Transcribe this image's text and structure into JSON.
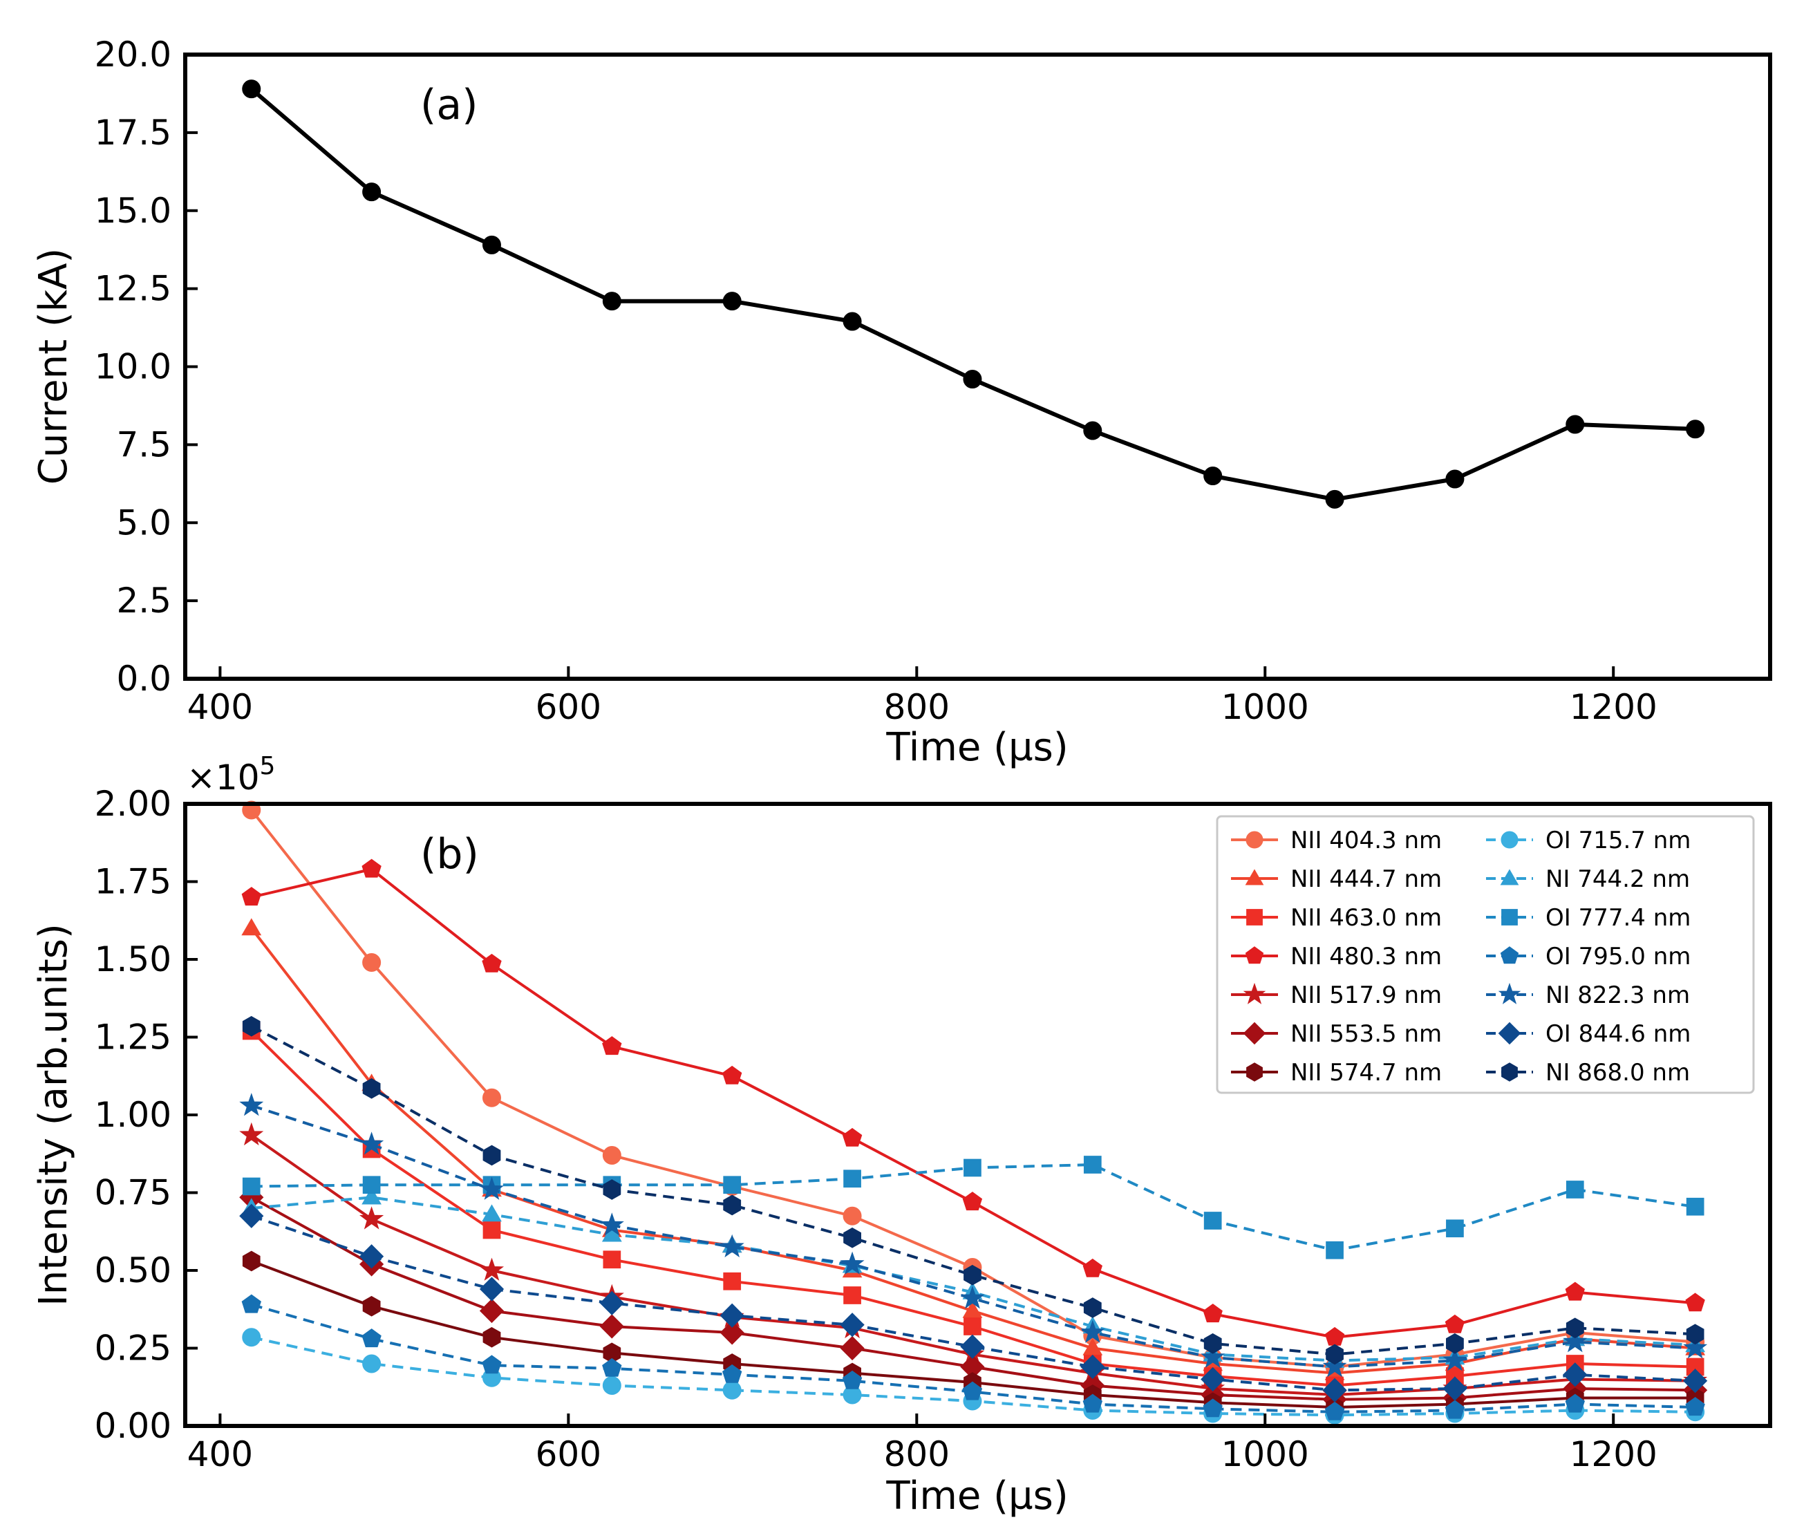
{
  "chart_data": [
    {
      "panel": "a",
      "type": "line",
      "panel_label": "(a)",
      "xlabel": "Time (µs)",
      "ylabel": "Current (kA)",
      "xlim": [
        380,
        1290
      ],
      "ylim": [
        0,
        20
      ],
      "xticks": [
        400,
        600,
        800,
        1000,
        1200
      ],
      "xtick_labels": [
        "400",
        "600",
        "800",
        "1000",
        "1200"
      ],
      "yticks": [
        0,
        2.5,
        5,
        7.5,
        10,
        12.5,
        15,
        17.5,
        20
      ],
      "ytick_labels": [
        "0.0",
        "2.5",
        "5.0",
        "7.5",
        "10.0",
        "12.5",
        "15.0",
        "17.5",
        "20.0"
      ],
      "grid": false,
      "x": [
        418,
        487,
        556,
        625,
        694,
        763,
        832,
        901,
        970,
        1040,
        1109,
        1178,
        1247
      ],
      "series": [
        {
          "name": "Current",
          "color": "#000000",
          "marker": "circle",
          "dash": false,
          "values": [
            18.9,
            15.6,
            13.9,
            12.1,
            12.1,
            11.45,
            9.6,
            7.95,
            6.5,
            5.75,
            6.4,
            8.15,
            8.0
          ]
        }
      ]
    },
    {
      "panel": "b",
      "type": "line",
      "panel_label": "(b)",
      "xlabel": "Time (µs)",
      "ylabel": "Intensity (arb.units)",
      "y_multiplier": "×10",
      "y_multiplier_exp": "5",
      "xlim": [
        380,
        1290
      ],
      "ylim": [
        0,
        2.0
      ],
      "xticks": [
        400,
        600,
        800,
        1000,
        1200
      ],
      "xtick_labels": [
        "400",
        "600",
        "800",
        "1000",
        "1200"
      ],
      "yticks": [
        0,
        0.25,
        0.5,
        0.75,
        1.0,
        1.25,
        1.5,
        1.75,
        2.0
      ],
      "ytick_labels": [
        "0.00",
        "0.25",
        "0.50",
        "0.75",
        "1.00",
        "1.25",
        "1.50",
        "1.75",
        "2.00"
      ],
      "grid": false,
      "legend_position": "top-right",
      "x": [
        418,
        487,
        556,
        625,
        694,
        763,
        832,
        901,
        970,
        1040,
        1109,
        1178,
        1247
      ],
      "series": [
        {
          "name": "NII 404.3 nm",
          "color": "#f4694b",
          "marker": "circle",
          "dash": false,
          "values": [
            1.98,
            1.49,
            1.055,
            0.87,
            0.77,
            0.675,
            0.51,
            0.29,
            0.22,
            0.19,
            0.23,
            0.3,
            0.27
          ]
        },
        {
          "name": "NII 444.7 nm",
          "color": "#f0452e",
          "marker": "triangle",
          "dash": false,
          "values": [
            1.6,
            1.1,
            0.76,
            0.63,
            0.58,
            0.5,
            0.37,
            0.25,
            0.2,
            0.17,
            0.2,
            0.28,
            0.25
          ]
        },
        {
          "name": "NII 463.0 nm",
          "color": "#ee2f26",
          "marker": "square",
          "dash": false,
          "values": [
            1.27,
            0.89,
            0.63,
            0.535,
            0.465,
            0.42,
            0.32,
            0.2,
            0.16,
            0.13,
            0.16,
            0.2,
            0.19
          ]
        },
        {
          "name": "NII 480.3 nm",
          "color": "#e11d1f",
          "marker": "pentagon",
          "dash": false,
          "values": [
            1.7,
            1.79,
            1.485,
            1.22,
            1.125,
            0.925,
            0.72,
            0.505,
            0.36,
            0.285,
            0.325,
            0.43,
            0.395
          ]
        },
        {
          "name": "NII 517.9 nm",
          "color": "#c71a1c",
          "marker": "star",
          "dash": false,
          "values": [
            0.935,
            0.665,
            0.5,
            0.415,
            0.35,
            0.315,
            0.23,
            0.17,
            0.12,
            0.1,
            0.12,
            0.15,
            0.145
          ]
        },
        {
          "name": "NII 553.5 nm",
          "color": "#a50f15",
          "marker": "diamond",
          "dash": false,
          "values": [
            0.735,
            0.52,
            0.37,
            0.32,
            0.3,
            0.25,
            0.19,
            0.13,
            0.1,
            0.085,
            0.09,
            0.12,
            0.115
          ]
        },
        {
          "name": "NII 574.7 nm",
          "color": "#7a0a0e",
          "marker": "hexagon",
          "dash": false,
          "values": [
            0.53,
            0.385,
            0.285,
            0.235,
            0.2,
            0.17,
            0.14,
            0.1,
            0.075,
            0.06,
            0.07,
            0.09,
            0.09
          ]
        },
        {
          "name": "OI 715.7 nm",
          "color": "#3bafe0",
          "marker": "circle",
          "dash": true,
          "values": [
            0.285,
            0.2,
            0.155,
            0.13,
            0.115,
            0.1,
            0.08,
            0.05,
            0.04,
            0.035,
            0.04,
            0.05,
            0.045
          ]
        },
        {
          "name": "NI 744.2 nm",
          "color": "#2f9fd4",
          "marker": "triangle",
          "dash": true,
          "values": [
            0.7,
            0.735,
            0.68,
            0.615,
            0.58,
            0.515,
            0.43,
            0.32,
            0.23,
            0.21,
            0.22,
            0.28,
            0.26
          ]
        },
        {
          "name": "OI 777.4 nm",
          "color": "#1f89c4",
          "marker": "square",
          "dash": true,
          "values": [
            0.77,
            0.775,
            0.775,
            0.775,
            0.775,
            0.795,
            0.83,
            0.84,
            0.66,
            0.565,
            0.635,
            0.76,
            0.705
          ]
        },
        {
          "name": "OI 795.0 nm",
          "color": "#1670b3",
          "marker": "pentagon",
          "dash": true,
          "values": [
            0.39,
            0.28,
            0.195,
            0.185,
            0.165,
            0.145,
            0.11,
            0.07,
            0.055,
            0.045,
            0.05,
            0.07,
            0.06
          ]
        },
        {
          "name": "NI 822.3 nm",
          "color": "#135ea3",
          "marker": "star",
          "dash": true,
          "values": [
            1.03,
            0.905,
            0.76,
            0.645,
            0.575,
            0.52,
            0.41,
            0.3,
            0.22,
            0.19,
            0.21,
            0.27,
            0.25
          ]
        },
        {
          "name": "OI 844.6 nm",
          "color": "#0e4a8e",
          "marker": "diamond",
          "dash": true,
          "values": [
            0.675,
            0.545,
            0.44,
            0.395,
            0.355,
            0.325,
            0.255,
            0.19,
            0.15,
            0.115,
            0.12,
            0.165,
            0.145
          ]
        },
        {
          "name": "NI 868.0 nm",
          "color": "#0a2f66",
          "marker": "hexagon",
          "dash": true,
          "values": [
            1.285,
            1.085,
            0.87,
            0.76,
            0.71,
            0.605,
            0.485,
            0.38,
            0.265,
            0.23,
            0.265,
            0.315,
            0.295
          ]
        }
      ]
    }
  ]
}
